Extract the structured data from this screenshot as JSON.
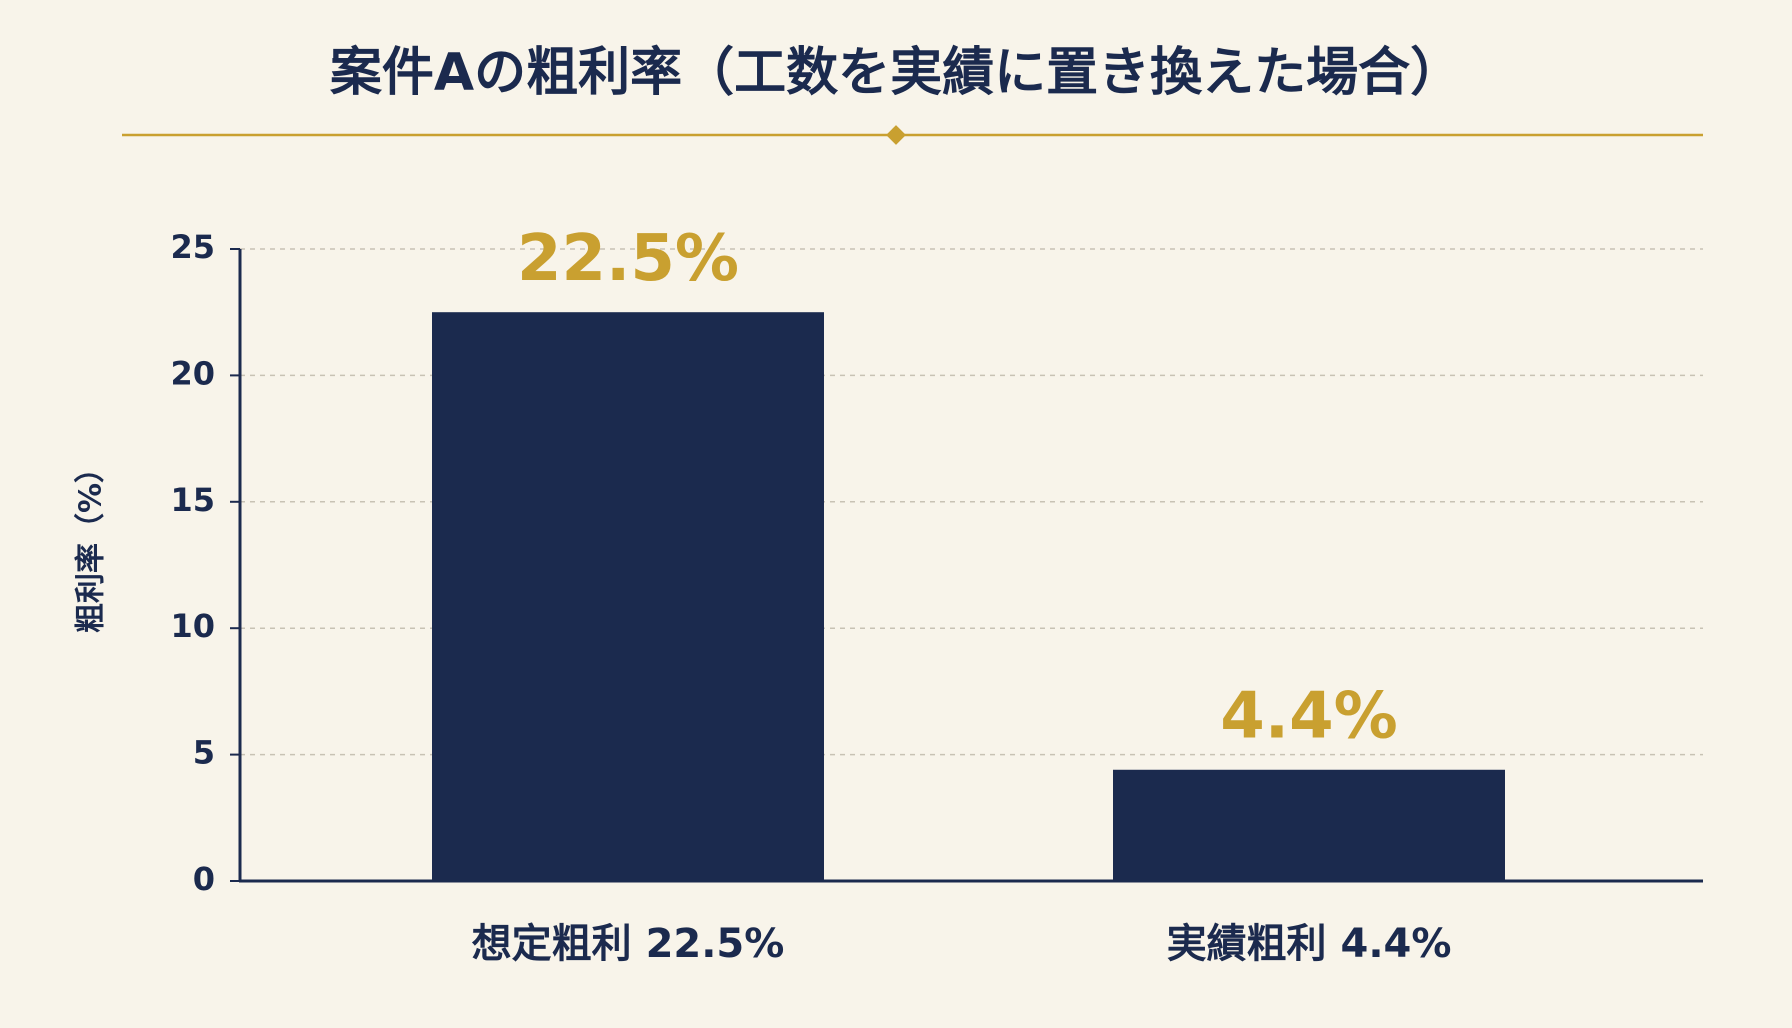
{
  "chart_data": {
    "type": "bar",
    "title": "案件Aの粗利率（工数を実績に置き換えた場合）",
    "y_label": "粗利率（%）",
    "categories": [
      "想定粗利 22.5%",
      "実績粗利 4.4%"
    ],
    "values": [
      22.5,
      4.4
    ],
    "value_labels": [
      "22.5%",
      "4.4%"
    ],
    "color": "#1b2a4e",
    "label_color": "#c9a030",
    "ylim": [
      0,
      25
    ],
    "yticks": [
      0,
      5,
      10,
      15,
      20,
      25
    ],
    "grid": true
  }
}
